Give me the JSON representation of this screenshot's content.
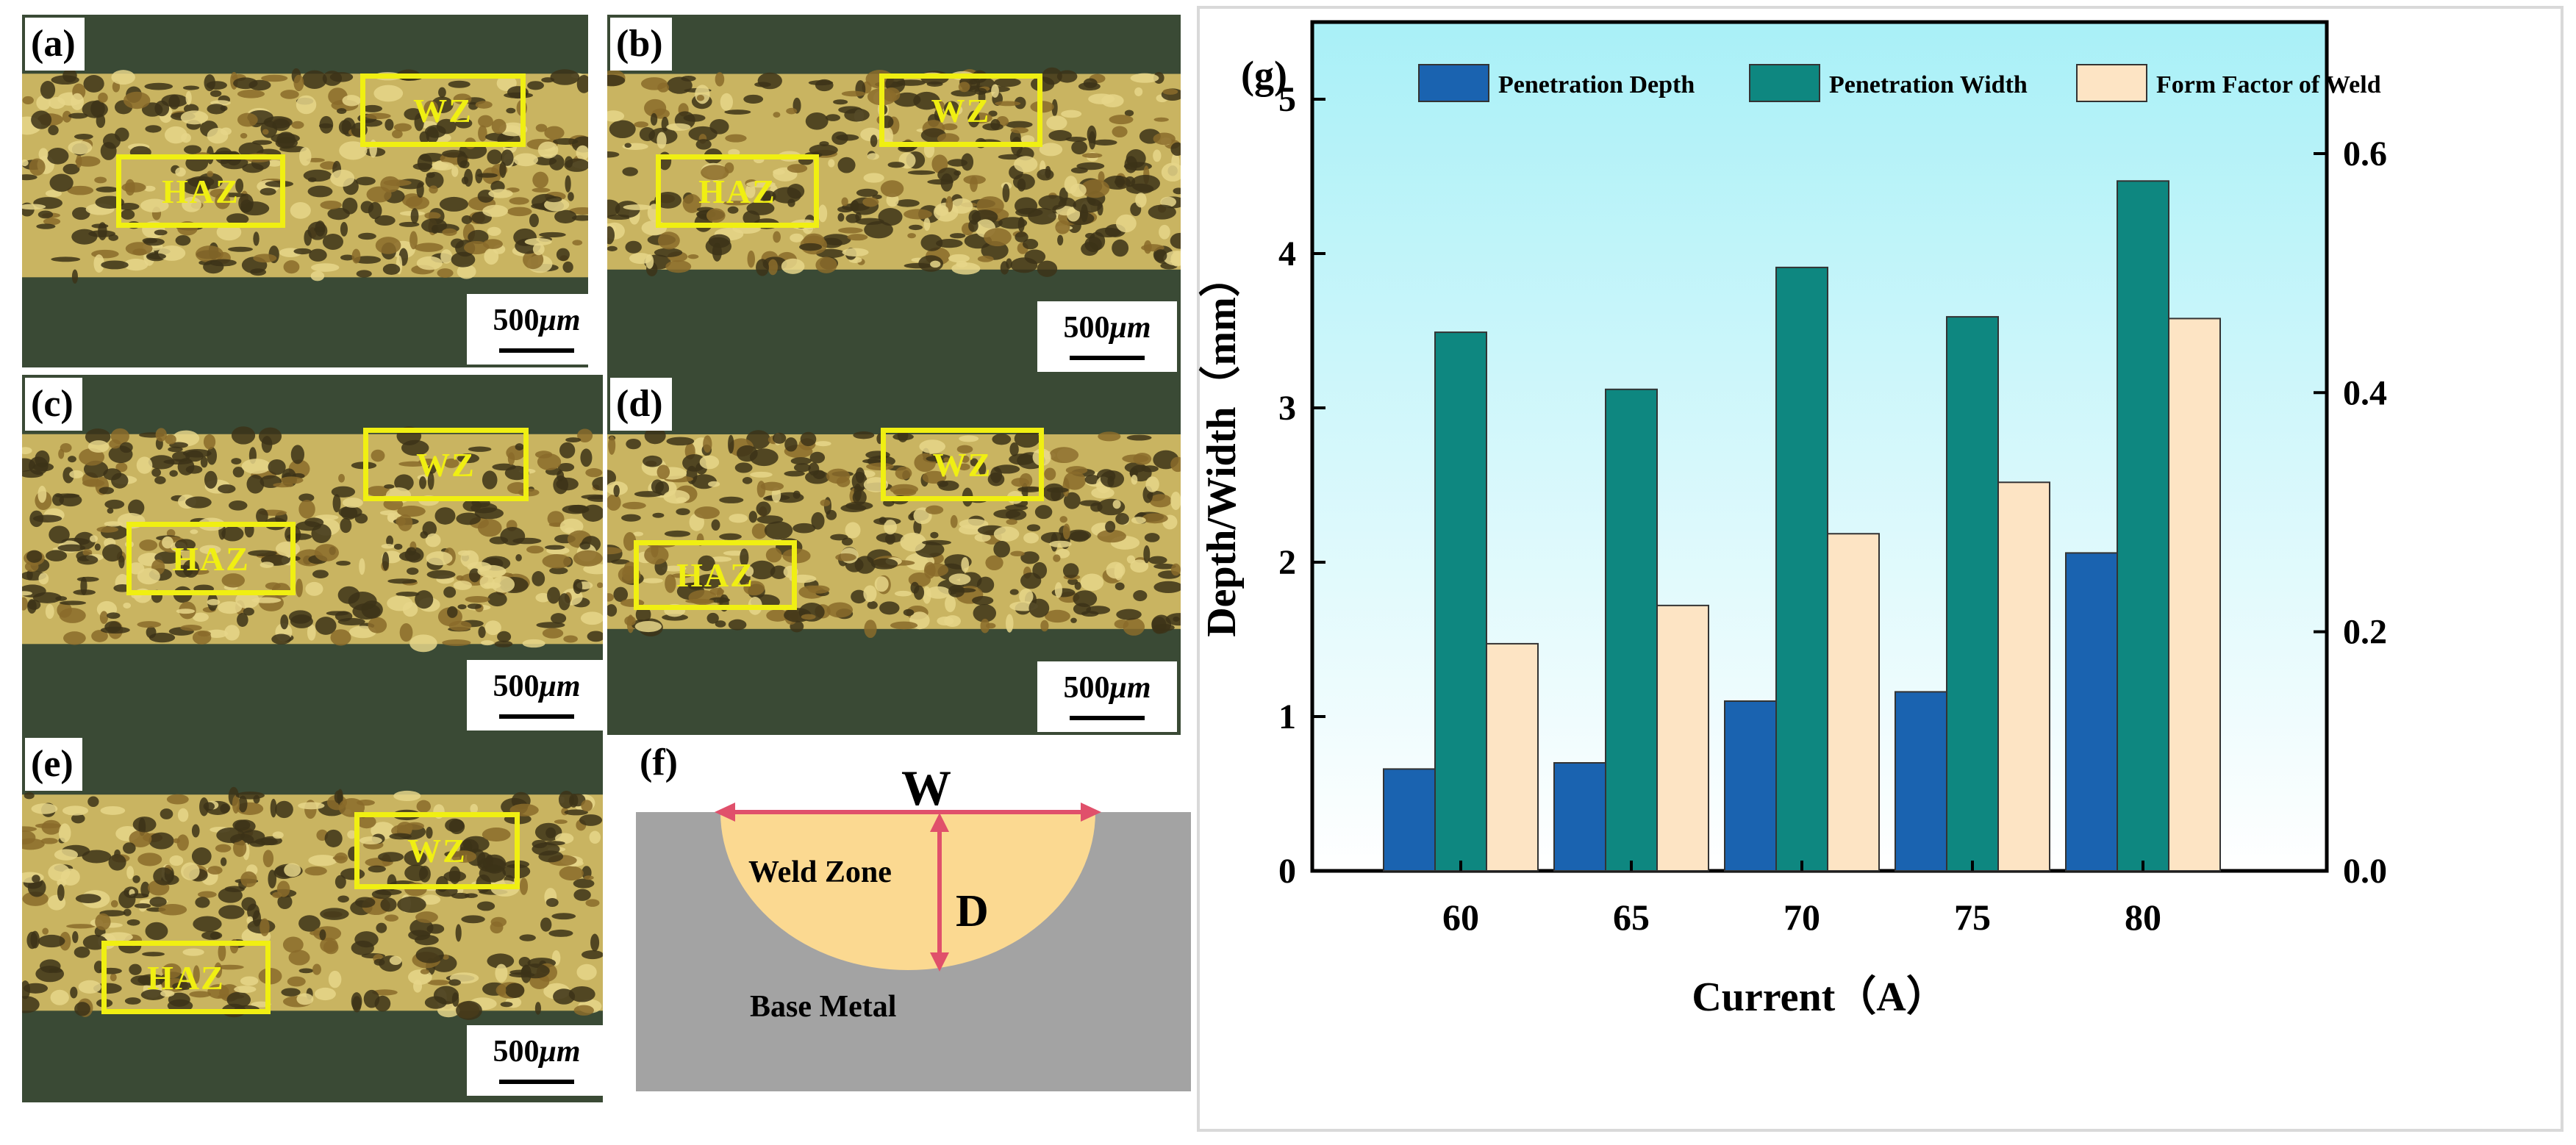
{
  "panels": {
    "a": {
      "label": "(a)",
      "wz": "WZ",
      "haz": "HAZ",
      "scale_value": "500",
      "scale_unit": "μm"
    },
    "b": {
      "label": "(b)",
      "wz": "WZ",
      "haz": "HAZ",
      "scale_value": "500",
      "scale_unit": "μm"
    },
    "c": {
      "label": "(c)",
      "wz": "WZ",
      "haz": "HAZ",
      "scale_value": "500",
      "scale_unit": "μm"
    },
    "d": {
      "label": "(d)",
      "wz": "WZ",
      "haz": "HAZ",
      "scale_value": "500",
      "scale_unit": "μm"
    },
    "e": {
      "label": "(e)",
      "wz": "WZ",
      "haz": "HAZ",
      "scale_value": "500",
      "scale_unit": "μm"
    }
  },
  "diagram": {
    "label": "(f)",
    "width_symbol": "W",
    "depth_symbol": "D",
    "weld_zone": "Weld Zone",
    "base_metal": "Base Metal",
    "colors": {
      "base": "#a3a3a3",
      "weld": "#fbd991",
      "arrow": "#e0506b"
    }
  },
  "chart_data": {
    "type": "bar",
    "panel_label": "(g)",
    "categories": [
      "60",
      "65",
      "70",
      "75",
      "80"
    ],
    "series": [
      {
        "name": "Penetration Depth",
        "axis": "left",
        "color": "#1a63b0",
        "values": [
          0.66,
          0.7,
          1.1,
          1.16,
          2.06
        ]
      },
      {
        "name": "Penetration Width",
        "axis": "left",
        "color": "#0e8780",
        "values": [
          3.49,
          3.12,
          3.91,
          3.59,
          4.47
        ]
      },
      {
        "name": "Form Factor of Weld",
        "axis": "right",
        "color": "#fde4c4",
        "values": [
          0.19,
          0.222,
          0.282,
          0.325,
          0.462
        ]
      }
    ],
    "xlabel": "Current（A）",
    "ylabel": "Depth/Width（mm）",
    "ylim": [
      0,
      5.5
    ],
    "yticks": [
      "0",
      "1",
      "2",
      "3",
      "4",
      "5"
    ],
    "y2lim": [
      0,
      0.71
    ],
    "y2ticks": [
      "0.0",
      "0.2",
      "0.4",
      "0.6"
    ],
    "legend_position": "top",
    "background": {
      "top": "#a9f0f7",
      "bottom": "#ffffff"
    }
  }
}
